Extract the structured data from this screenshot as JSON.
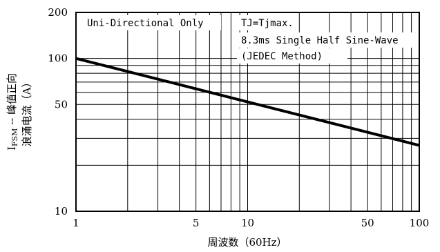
{
  "chart_data": {
    "type": "line",
    "x_scale": "log",
    "y_scale": "log",
    "xlim": [
      1,
      100
    ],
    "ylim": [
      10,
      200
    ],
    "grid": true,
    "x_ticks": [
      "1",
      "5",
      "10",
      "50",
      "100"
    ],
    "y_ticks": [
      "10",
      "50",
      "100",
      "200"
    ],
    "xlabel": "周波数（60Hz）",
    "ylabel_line1": "I",
    "ylabel_sub": "FSM",
    "ylabel_line1_rest": " -- 峰值正向",
    "ylabel_line2": "浪涌电流（A）",
    "annotations": [
      "Uni-Directional Only",
      "TJ=Tjmax.",
      "8.3ms Single Half Sine-Wave",
      "(JEDEC Method)"
    ],
    "series": [
      {
        "x": [
          1,
          100
        ],
        "y": [
          100,
          27
        ]
      }
    ]
  }
}
